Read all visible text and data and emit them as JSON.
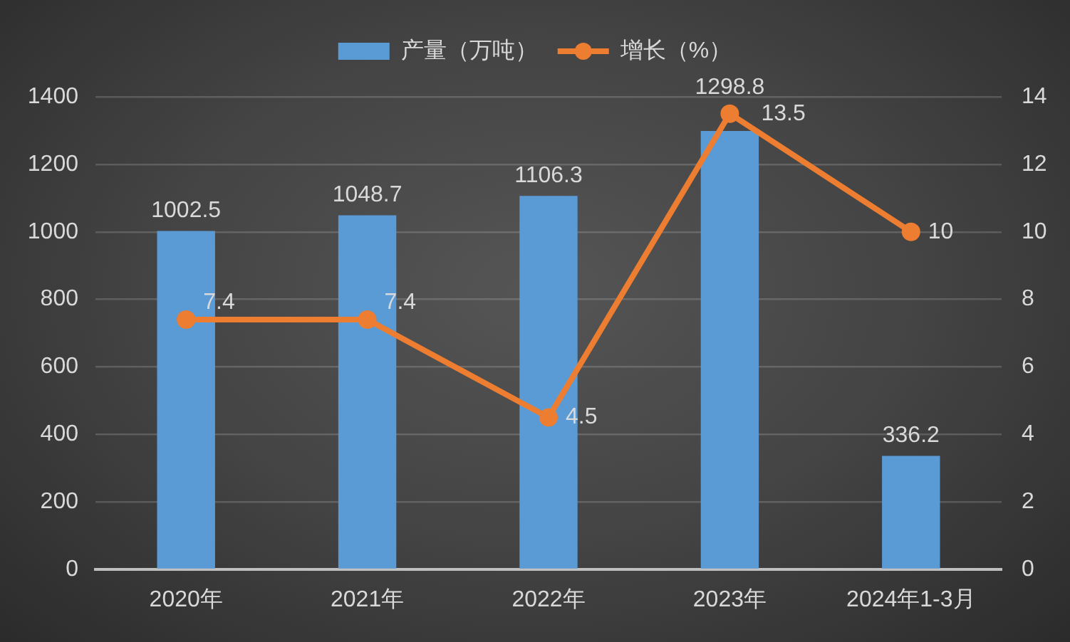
{
  "chart_data": {
    "type": "bar",
    "categories": [
      "2020年",
      "2021年",
      "2022年",
      "2023年",
      "2024年1-3月"
    ],
    "series": [
      {
        "name": "产量（万吨）",
        "color": "#5b9bd5",
        "values": [
          1002.5,
          1048.7,
          1106.3,
          1298.8,
          336.2
        ]
      },
      {
        "name": "增长（%）",
        "type": "line",
        "axis": "y2",
        "color": "#ed7d31",
        "values": [
          7.4,
          7.4,
          4.5,
          13.5,
          10
        ]
      }
    ],
    "ylim": [
      0,
      1400
    ],
    "yticks": [
      0,
      200,
      400,
      600,
      800,
      1000,
      1200,
      1400
    ],
    "y2lim": [
      0,
      14
    ],
    "y2ticks": [
      0,
      2,
      4,
      6,
      8,
      10,
      12,
      14
    ],
    "grid": "y",
    "legend": "top",
    "marker": "circle",
    "line_style": "solid",
    "data_labels": true
  }
}
